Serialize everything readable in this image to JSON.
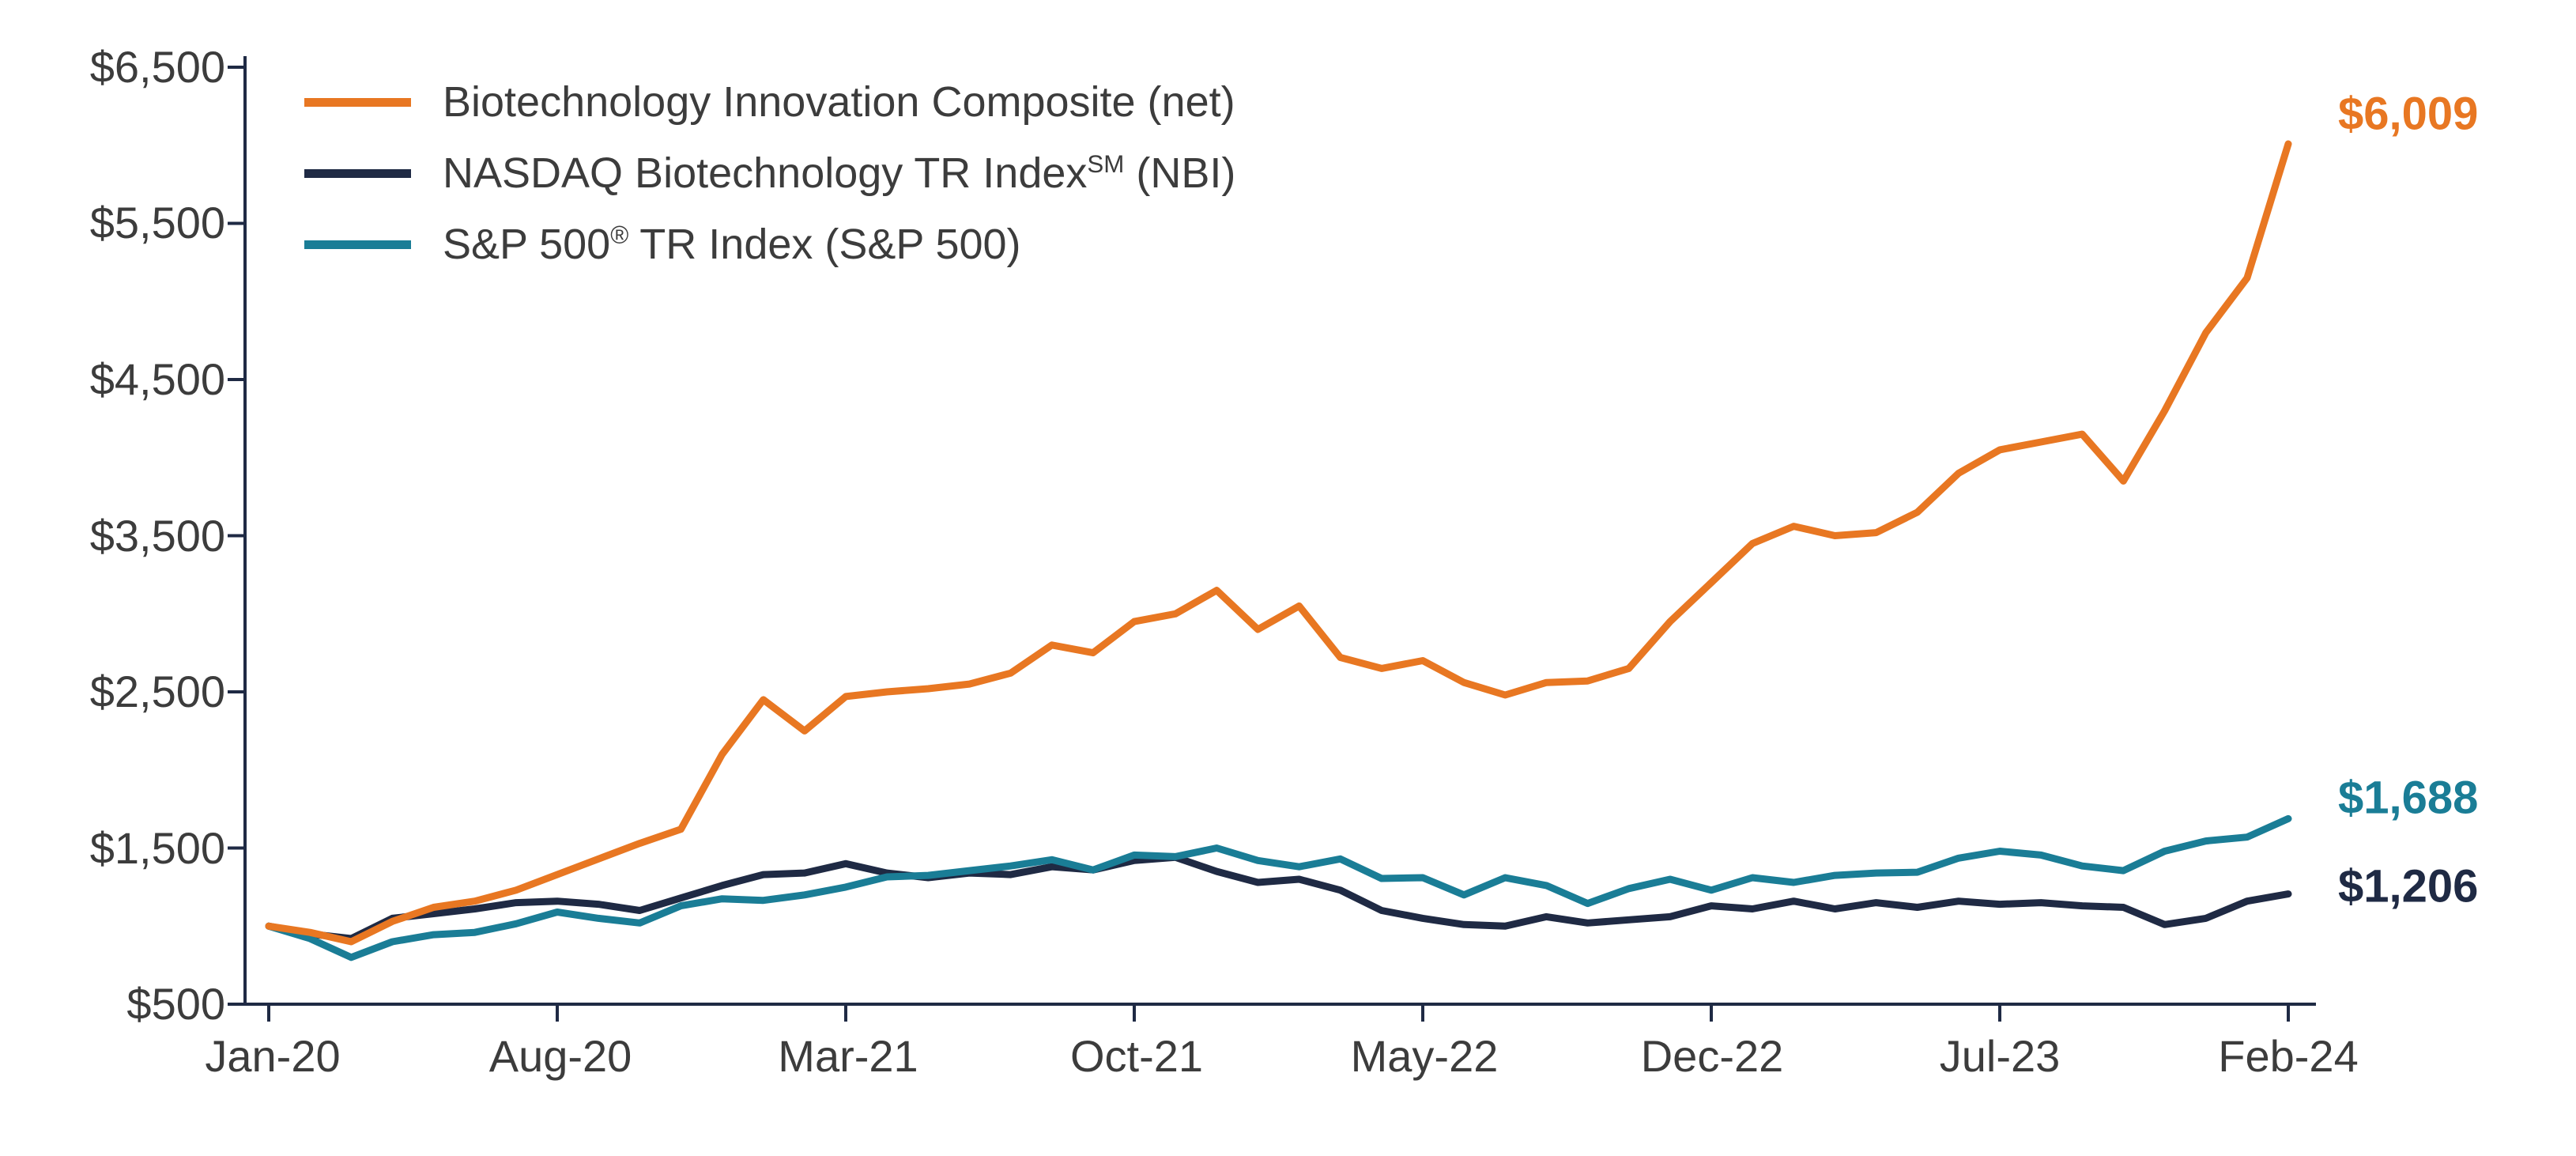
{
  "chart_data": {
    "type": "line",
    "grid": "off",
    "legend_position": "top-left",
    "ylim": [
      500,
      6500
    ],
    "y_tick_labels": [
      "$6,500",
      "$5,500",
      "$4,500",
      "$3,500",
      "$2,500",
      "$1,500",
      "$500"
    ],
    "x_tick_labels": [
      "Jan-20",
      "Aug-20",
      "Mar-21",
      "Oct-21",
      "May-22",
      "Dec-22",
      "Jul-23",
      "Feb-24"
    ],
    "x_tick_months": [
      0,
      7,
      14,
      21,
      28,
      35,
      42,
      49
    ],
    "x": [
      "Jan-20",
      "Feb-20",
      "Mar-20",
      "Apr-20",
      "May-20",
      "Jun-20",
      "Jul-20",
      "Aug-20",
      "Sep-20",
      "Oct-20",
      "Nov-20",
      "Dec-20",
      "Jan-21",
      "Feb-21",
      "Mar-21",
      "Apr-21",
      "May-21",
      "Jun-21",
      "Jul-21",
      "Aug-21",
      "Sep-21",
      "Oct-21",
      "Nov-21",
      "Dec-21",
      "Jan-22",
      "Feb-22",
      "Mar-22",
      "Apr-22",
      "May-22",
      "Jun-22",
      "Jul-22",
      "Aug-22",
      "Sep-22",
      "Oct-22",
      "Nov-22",
      "Dec-22",
      "Jan-23",
      "Feb-23",
      "Mar-23",
      "Apr-23",
      "May-23",
      "Jun-23",
      "Jul-23",
      "Aug-23",
      "Sep-23",
      "Oct-23",
      "Nov-23",
      "Dec-23",
      "Jan-24",
      "Feb-24"
    ],
    "series": [
      {
        "name": "Biotechnology Innovation Composite (net)",
        "legend": {
          "pre": "Biotechnology Innovation Composite (net)",
          "sup": "",
          "post": ""
        },
        "color": "#E87722",
        "end_label": "$6,009",
        "end_value": 6009,
        "values": [
          1000,
          960,
          900,
          1030,
          1120,
          1160,
          1230,
          1330,
          1430,
          1530,
          1620,
          2100,
          2450,
          2250,
          2470,
          2500,
          2520,
          2550,
          2620,
          2800,
          2750,
          2950,
          3000,
          3150,
          2900,
          3050,
          2720,
          2650,
          2700,
          2560,
          2480,
          2560,
          2570,
          2650,
          2950,
          3200,
          3450,
          3560,
          3500,
          3520,
          3650,
          3900,
          4050,
          4100,
          4150,
          3850,
          4300,
          4800,
          5150,
          6009
        ]
      },
      {
        "name": "NASDAQ Biotechnology TR Index SM (NBI)",
        "legend": {
          "pre": "NASDAQ Biotechnology TR Index",
          "sup": "SM",
          "post": " (NBI)"
        },
        "color": "#1F2A44",
        "end_label": "$1,206",
        "end_value": 1206,
        "values": [
          1000,
          950,
          920,
          1050,
          1080,
          1110,
          1150,
          1160,
          1140,
          1100,
          1180,
          1260,
          1330,
          1340,
          1400,
          1340,
          1310,
          1340,
          1330,
          1380,
          1360,
          1420,
          1440,
          1350,
          1280,
          1300,
          1230,
          1100,
          1050,
          1010,
          1000,
          1060,
          1020,
          1040,
          1060,
          1130,
          1110,
          1160,
          1110,
          1150,
          1120,
          1160,
          1140,
          1150,
          1130,
          1120,
          1010,
          1050,
          1160,
          1206
        ]
      },
      {
        "name": "S&P 500 (R) TR Index (S&P 500)",
        "legend": {
          "pre": "S&P 500",
          "sup": "®",
          "post": " TR Index (S&P 500)"
        },
        "color": "#1A7D96",
        "end_label": "$1,688",
        "end_value": 1688,
        "values": [
          1000,
          920,
          800,
          900,
          945,
          960,
          1015,
          1090,
          1050,
          1020,
          1130,
          1175,
          1165,
          1200,
          1250,
          1315,
          1325,
          1355,
          1385,
          1425,
          1360,
          1455,
          1445,
          1500,
          1420,
          1380,
          1430,
          1305,
          1310,
          1200,
          1310,
          1260,
          1145,
          1240,
          1300,
          1230,
          1310,
          1280,
          1325,
          1340,
          1345,
          1435,
          1480,
          1455,
          1385,
          1355,
          1480,
          1545,
          1570,
          1688
        ]
      }
    ],
    "axis_color": "#1F2A44"
  }
}
